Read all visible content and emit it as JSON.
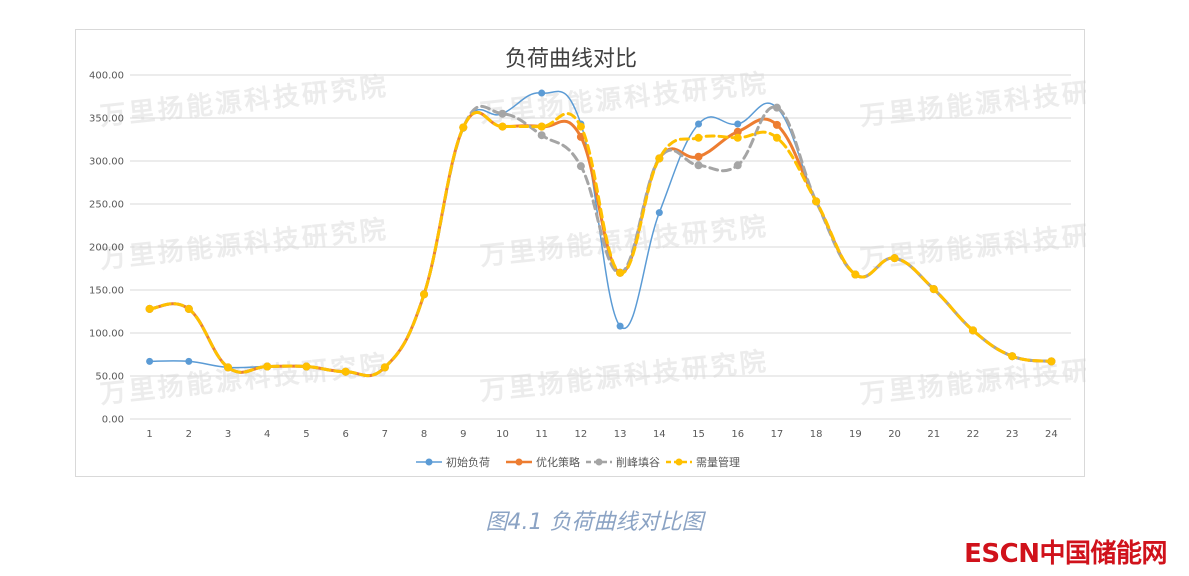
{
  "watermark_text": "万里扬能源科技研究院",
  "caption": "图4.1 负荷曲线对比图",
  "logo_text": "ESCN中国储能网",
  "chart_data": {
    "type": "line",
    "title": "负荷曲线对比",
    "x": [
      "1",
      "2",
      "3",
      "4",
      "5",
      "6",
      "7",
      "8",
      "9",
      "10",
      "11",
      "12",
      "13",
      "14",
      "15",
      "16",
      "17",
      "18",
      "19",
      "20",
      "21",
      "22",
      "23",
      "24"
    ],
    "ylim": [
      0,
      400
    ],
    "yticks": [
      "0.00",
      "50.00",
      "100.00",
      "150.00",
      "200.00",
      "250.00",
      "300.00",
      "350.00",
      "400.00"
    ],
    "grid": true,
    "legend_position": "bottom",
    "series": [
      {
        "name": "初始负荷",
        "color": "#5b9bd5",
        "dashed": false,
        "values": [
          67,
          67,
          60,
          61,
          61,
          55,
          60,
          145,
          338,
          355,
          379,
          343,
          108,
          240,
          343,
          343,
          362,
          253,
          168,
          187,
          151,
          103,
          73,
          67
        ]
      },
      {
        "name": "优化策略",
        "color": "#ed7d31",
        "dashed": false,
        "values": [
          128,
          128,
          60,
          61,
          61,
          55,
          60,
          145,
          339,
          340,
          340,
          328,
          170,
          303,
          305,
          334,
          342,
          253,
          168,
          187,
          151,
          103,
          73,
          67
        ]
      },
      {
        "name": "削峰填谷",
        "color": "#a5a5a5",
        "dashed": true,
        "values": [
          128,
          128,
          60,
          61,
          61,
          55,
          60,
          145,
          339,
          355,
          330,
          294,
          170,
          303,
          295,
          295,
          362,
          253,
          168,
          187,
          151,
          103,
          73,
          67
        ]
      },
      {
        "name": "需量管理",
        "color": "#ffc000",
        "dashed": true,
        "values": [
          128,
          128,
          60,
          61,
          61,
          55,
          60,
          145,
          339,
          340,
          340,
          340,
          170,
          303,
          327,
          327,
          327,
          253,
          168,
          187,
          151,
          103,
          73,
          67
        ]
      }
    ]
  }
}
